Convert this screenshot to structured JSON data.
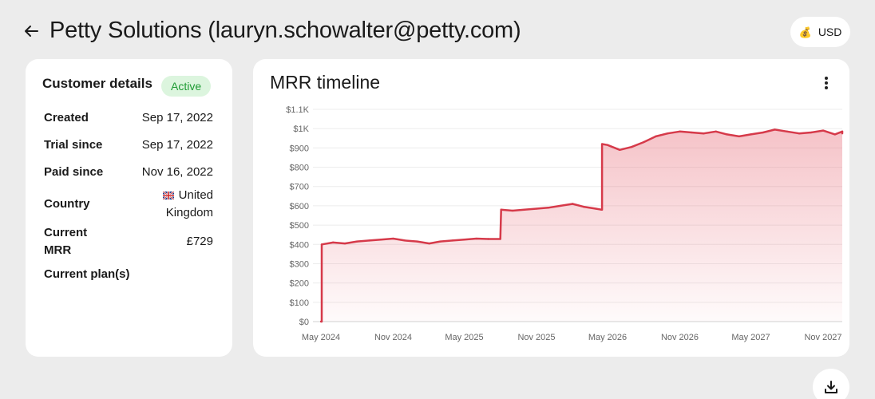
{
  "header": {
    "back_icon": "arrow-left-icon",
    "title": "Petty Solutions (lauryn.schowalter@petty.com)"
  },
  "currency": {
    "icon": "money-bag-icon",
    "label": "USD"
  },
  "details": {
    "title": "Customer details",
    "status": "Active",
    "rows": [
      {
        "label": "Created",
        "value": "Sep 17, 2022"
      },
      {
        "label": "Trial since",
        "value": "Sep 17, 2022"
      },
      {
        "label": "Paid since",
        "value": "Nov 16, 2022"
      },
      {
        "label": "Country",
        "value_line1": "United",
        "value_line2": "Kingdom",
        "flag": "uk-flag-icon"
      },
      {
        "label_line1": "Current",
        "label_line2": "MRR",
        "value": "£729"
      },
      {
        "label": "Current plan(s)",
        "value": ""
      }
    ]
  },
  "chart": {
    "title": "MRR timeline",
    "menu_icon": "kebab-menu-icon",
    "download_icon": "download-icon"
  },
  "chart_data": {
    "type": "area",
    "title": "MRR timeline",
    "xlabel": "",
    "ylabel": "",
    "ylim": [
      0,
      1100
    ],
    "y_ticks": [
      "$0",
      "$100",
      "$200",
      "$300",
      "$400",
      "$500",
      "$600",
      "$700",
      "$800",
      "$900",
      "$1K",
      "$1.1K"
    ],
    "x_ticks": [
      "May 2024",
      "Nov 2024",
      "May 2025",
      "Nov 2025",
      "May 2026",
      "Nov 2026",
      "May 2027",
      "Nov 2027"
    ],
    "grid": true,
    "color": "#d63a4a",
    "series": [
      {
        "x": [
          "2024-05-01",
          "2024-05-03",
          "2024-06-01",
          "2024-07-01",
          "2024-08-01",
          "2024-09-01",
          "2024-10-01",
          "2024-11-01",
          "2024-12-01",
          "2025-01-01",
          "2025-02-01",
          "2025-03-01",
          "2025-04-01",
          "2025-05-01",
          "2025-06-01",
          "2025-07-01",
          "2025-08-01",
          "2025-08-03",
          "2025-09-01",
          "2025-10-01",
          "2025-11-01",
          "2025-12-01",
          "2026-01-01",
          "2026-02-01",
          "2026-03-01",
          "2026-04-01",
          "2026-04-15",
          "2026-04-17",
          "2026-05-01",
          "2026-06-01",
          "2026-07-01",
          "2026-08-01",
          "2026-09-01",
          "2026-10-01",
          "2026-11-01",
          "2026-12-01",
          "2027-01-01",
          "2027-02-01",
          "2027-03-01",
          "2027-04-01",
          "2027-05-01",
          "2027-06-01",
          "2027-07-01",
          "2027-08-01",
          "2027-09-01",
          "2027-10-01",
          "2027-11-01",
          "2027-12-01",
          "2028-01-01",
          "2028-02-01"
        ],
        "values": [
          0,
          400,
          410,
          405,
          415,
          420,
          425,
          430,
          420,
          415,
          405,
          415,
          420,
          425,
          430,
          428,
          428,
          580,
          575,
          580,
          585,
          590,
          600,
          610,
          595,
          585,
          580,
          920,
          915,
          890,
          905,
          930,
          960,
          975,
          985,
          980,
          975,
          985,
          970,
          960,
          970,
          980,
          995,
          985,
          975,
          980,
          990,
          970,
          985,
          975
        ]
      }
    ]
  }
}
